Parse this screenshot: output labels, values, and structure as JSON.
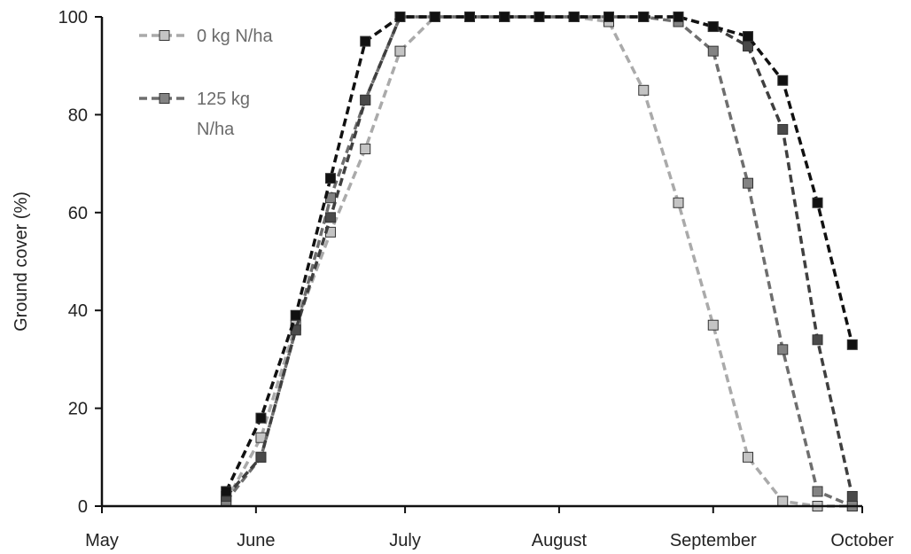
{
  "chart_data": {
    "type": "line",
    "title": "",
    "xlabel": "",
    "ylabel": "Ground cover (%)",
    "ylim": [
      0,
      100
    ],
    "yticks": [
      0,
      20,
      40,
      60,
      80,
      100
    ],
    "xlim": [
      "2000-05-01",
      "2000-10-01"
    ],
    "xticks": [
      {
        "date": "2000-05-01",
        "label": "May"
      },
      {
        "date": "2000-06-01",
        "label": "June"
      },
      {
        "date": "2000-07-01",
        "label": "July"
      },
      {
        "date": "2000-08-01",
        "label": "August"
      },
      {
        "date": "2000-09-01",
        "label": "September"
      },
      {
        "date": "2000-10-01",
        "label": "October"
      }
    ],
    "grid": false,
    "legend_position": "top-left",
    "series": [
      {
        "name": "0 kg N/ha",
        "color": "#aaaaaa",
        "marker_fill": "#c4c4c4",
        "in_legend": true,
        "points": [
          [
            "2000-05-26",
            1
          ],
          [
            "2000-06-02",
            14
          ],
          [
            "2000-06-09",
            37
          ],
          [
            "2000-06-16",
            56
          ],
          [
            "2000-06-23",
            73
          ],
          [
            "2000-06-30",
            93
          ],
          [
            "2000-07-07",
            100
          ],
          [
            "2000-07-14",
            100
          ],
          [
            "2000-07-21",
            100
          ],
          [
            "2000-07-28",
            100
          ],
          [
            "2000-08-04",
            100
          ],
          [
            "2000-08-11",
            99
          ],
          [
            "2000-08-18",
            85
          ],
          [
            "2000-08-25",
            62
          ],
          [
            "2000-09-01",
            37
          ],
          [
            "2000-09-08",
            10
          ],
          [
            "2000-09-15",
            1
          ],
          [
            "2000-09-22",
            0
          ],
          [
            "2000-09-29",
            0
          ]
        ]
      },
      {
        "name": "125 kg N/ha",
        "color": "#6e6e6e",
        "marker_fill": "#838383",
        "in_legend": true,
        "points": [
          [
            "2000-05-26",
            1
          ],
          [
            "2000-06-02",
            10
          ],
          [
            "2000-06-09",
            36
          ],
          [
            "2000-06-16",
            63
          ],
          [
            "2000-06-23",
            83
          ],
          [
            "2000-06-30",
            100
          ],
          [
            "2000-07-07",
            100
          ],
          [
            "2000-07-14",
            100
          ],
          [
            "2000-07-21",
            100
          ],
          [
            "2000-07-28",
            100
          ],
          [
            "2000-08-04",
            100
          ],
          [
            "2000-08-11",
            100
          ],
          [
            "2000-08-18",
            100
          ],
          [
            "2000-08-25",
            99
          ],
          [
            "2000-09-01",
            93
          ],
          [
            "2000-09-08",
            66
          ],
          [
            "2000-09-15",
            32
          ],
          [
            "2000-09-22",
            3
          ],
          [
            "2000-09-29",
            0
          ]
        ]
      },
      {
        "name": "",
        "color": "#3f3f3f",
        "marker_fill": "#4a4a4a",
        "in_legend": false,
        "points": [
          [
            "2000-05-26",
            2
          ],
          [
            "2000-06-02",
            10
          ],
          [
            "2000-06-09",
            36
          ],
          [
            "2000-06-16",
            59
          ],
          [
            "2000-06-23",
            83
          ],
          [
            "2000-06-30",
            100
          ],
          [
            "2000-07-07",
            100
          ],
          [
            "2000-07-14",
            100
          ],
          [
            "2000-07-21",
            100
          ],
          [
            "2000-07-28",
            100
          ],
          [
            "2000-08-04",
            100
          ],
          [
            "2000-08-11",
            100
          ],
          [
            "2000-08-18",
            100
          ],
          [
            "2000-08-25",
            100
          ],
          [
            "2000-09-01",
            98
          ],
          [
            "2000-09-08",
            94
          ],
          [
            "2000-09-15",
            77
          ],
          [
            "2000-09-22",
            34
          ],
          [
            "2000-09-29",
            2
          ]
        ]
      },
      {
        "name": "",
        "color": "#111111",
        "marker_fill": "#111111",
        "in_legend": false,
        "points": [
          [
            "2000-05-26",
            3
          ],
          [
            "2000-06-02",
            18
          ],
          [
            "2000-06-09",
            39
          ],
          [
            "2000-06-16",
            67
          ],
          [
            "2000-06-23",
            95
          ],
          [
            "2000-06-30",
            100
          ],
          [
            "2000-07-07",
            100
          ],
          [
            "2000-07-14",
            100
          ],
          [
            "2000-07-21",
            100
          ],
          [
            "2000-07-28",
            100
          ],
          [
            "2000-08-04",
            100
          ],
          [
            "2000-08-11",
            100
          ],
          [
            "2000-08-18",
            100
          ],
          [
            "2000-08-25",
            100
          ],
          [
            "2000-09-01",
            98
          ],
          [
            "2000-09-08",
            96
          ],
          [
            "2000-09-15",
            87
          ],
          [
            "2000-09-22",
            62
          ],
          [
            "2000-09-29",
            33
          ]
        ]
      }
    ],
    "legend": {
      "entries": [
        {
          "lines": [
            "0 kg N/ha"
          ]
        },
        {
          "lines": [
            "125 kg",
            "N/ha"
          ]
        }
      ]
    }
  }
}
